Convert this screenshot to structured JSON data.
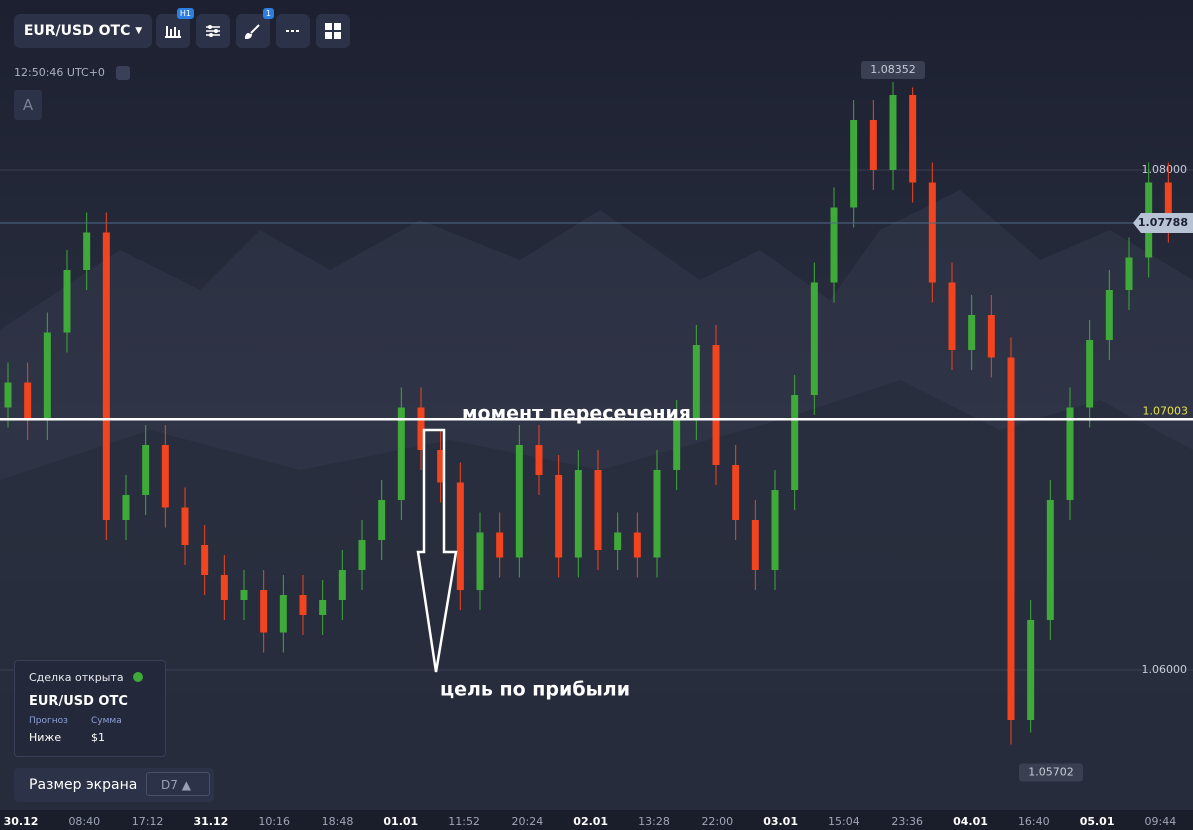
{
  "toolbar": {
    "symbol": "EUR/USD OTC",
    "timeframe_badge": "H1",
    "drawings_badge": "1"
  },
  "clock": {
    "time": "12:50:46",
    "timezone": "UTC+0"
  },
  "indicator_button": "A",
  "chart_data": {
    "type": "candlestick",
    "open": [
      1.0705,
      1.0715,
      1.07,
      1.0735,
      1.076,
      1.0775,
      1.066,
      1.067,
      1.069,
      1.0665,
      1.065,
      1.0638,
      1.0628,
      1.0632,
      1.0615,
      1.063,
      1.0622,
      1.0628,
      1.064,
      1.0652,
      1.0668,
      1.0705,
      1.0688,
      1.0675,
      1.0632,
      1.0655,
      1.0645,
      1.069,
      1.0678,
      1.0645,
      1.068,
      1.0648,
      1.0655,
      1.0645,
      1.068,
      1.07,
      1.073,
      1.0682,
      1.066,
      1.064,
      1.0672,
      1.071,
      1.0755,
      1.0785,
      1.082,
      1.08,
      1.083,
      1.0795,
      1.0755,
      1.0728,
      1.0742,
      1.0725,
      1.058,
      1.062,
      1.0668,
      1.0705,
      1.0732,
      1.0752,
      1.0765,
      1.0795
    ],
    "high": [
      1.0723,
      1.0723,
      1.0743,
      1.0768,
      1.0783,
      1.0783,
      1.0678,
      1.0698,
      1.0698,
      1.0673,
      1.0658,
      1.0646,
      1.064,
      1.064,
      1.0638,
      1.0638,
      1.0636,
      1.0648,
      1.066,
      1.0676,
      1.0713,
      1.0713,
      1.0696,
      1.0683,
      1.0663,
      1.0663,
      1.0698,
      1.0698,
      1.0686,
      1.0688,
      1.0688,
      1.0663,
      1.0663,
      1.0688,
      1.0708,
      1.0738,
      1.0738,
      1.069,
      1.0668,
      1.068,
      1.0718,
      1.0763,
      1.0793,
      1.0828,
      1.0828,
      1.08352,
      1.0833,
      1.0803,
      1.0763,
      1.075,
      1.075,
      1.0733,
      1.0628,
      1.0676,
      1.0713,
      1.074,
      1.076,
      1.0773,
      1.0803,
      1.0803
    ],
    "low": [
      1.0697,
      1.0692,
      1.0692,
      1.0727,
      1.0752,
      1.0652,
      1.0652,
      1.0662,
      1.0657,
      1.0642,
      1.063,
      1.062,
      1.062,
      1.0607,
      1.0607,
      1.0614,
      1.0614,
      1.062,
      1.0632,
      1.0644,
      1.066,
      1.068,
      1.0667,
      1.0624,
      1.0624,
      1.0637,
      1.0637,
      1.067,
      1.0637,
      1.0637,
      1.064,
      1.064,
      1.0637,
      1.0637,
      1.0672,
      1.0692,
      1.0674,
      1.0652,
      1.0632,
      1.0632,
      1.0664,
      1.0702,
      1.0747,
      1.0777,
      1.0792,
      1.0792,
      1.0787,
      1.0747,
      1.072,
      1.072,
      1.0717,
      1.05702,
      1.0575,
      1.0612,
      1.066,
      1.0697,
      1.0724,
      1.0744,
      1.0757,
      1.0771
    ],
    "close": [
      1.0715,
      1.07,
      1.0735,
      1.076,
      1.0775,
      1.066,
      1.067,
      1.069,
      1.0665,
      1.065,
      1.0638,
      1.0628,
      1.0632,
      1.0615,
      1.063,
      1.0622,
      1.0628,
      1.064,
      1.0652,
      1.0668,
      1.0705,
      1.0688,
      1.0675,
      1.0632,
      1.0655,
      1.0645,
      1.069,
      1.0678,
      1.0645,
      1.068,
      1.0648,
      1.0655,
      1.0645,
      1.068,
      1.07,
      1.073,
      1.0682,
      1.066,
      1.064,
      1.0672,
      1.071,
      1.0755,
      1.0785,
      1.082,
      1.08,
      1.083,
      1.0795,
      1.0755,
      1.0728,
      1.0742,
      1.0725,
      1.058,
      1.062,
      1.0668,
      1.0705,
      1.0732,
      1.0752,
      1.0765,
      1.0795,
      1.0779
    ],
    "up_color": "#3fa93a",
    "down_color": "#f2441f",
    "categories": [
      "30.12",
      "08:40",
      "17:12",
      "31.12",
      "10:16",
      "18:48",
      "01.01",
      "11:52",
      "20:24",
      "02.01",
      "13:28",
      "22:00",
      "03.01",
      "15:04",
      "23:36",
      "04.01",
      "16:40",
      "05.01",
      "09:44"
    ],
    "ylim": [
      1.0868,
      1.0548
    ],
    "yticks": [
      {
        "value": 1.08,
        "label": "1.08000"
      },
      {
        "value": 1.06,
        "label": "1.06000"
      }
    ],
    "grid": true,
    "price_tags": {
      "high": 1.08352,
      "current": 1.07788,
      "level": 1.07003,
      "low": 1.05702
    },
    "annotations": [
      "момент пересечения",
      "цель по прибыли"
    ]
  },
  "trade_panel": {
    "status": "Сделка открыта",
    "symbol": "EUR/USD OTC",
    "forecast_label": "Прогноз",
    "amount_label": "Сумма",
    "forecast": "Ниже",
    "amount": "$1"
  },
  "screen_size": {
    "label": "Размер экрана",
    "value": "D7"
  }
}
